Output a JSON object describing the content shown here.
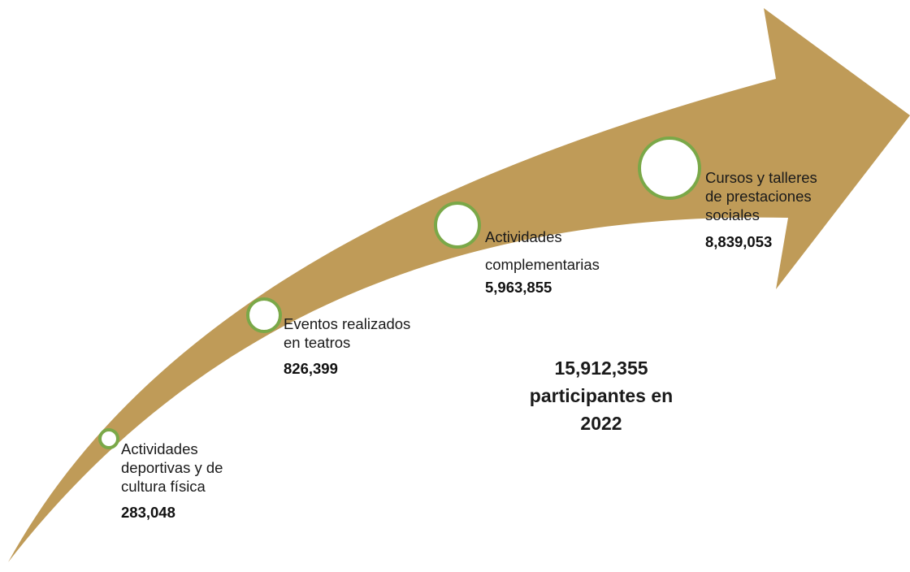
{
  "diagram": {
    "arrow_color": "#bf9b58",
    "circle_fill": "#ffffff",
    "circle_stroke": "#7aa848",
    "milestones": [
      {
        "label_lines": [
          "Actividades",
          "deportivas y de",
          "cultura física"
        ],
        "value": "283,048"
      },
      {
        "label_lines": [
          "Eventos realizados",
          "en teatros"
        ],
        "value": "826,399"
      },
      {
        "label_lines": [
          "Actividades",
          "complementarias"
        ],
        "value": "5,963,855"
      },
      {
        "label_lines": [
          "Cursos y talleres",
          "de prestaciones",
          "sociales"
        ],
        "value": "8,839,053"
      }
    ],
    "total": {
      "number": "15,912,355",
      "text_line": "participantes en",
      "year": "2022"
    }
  }
}
